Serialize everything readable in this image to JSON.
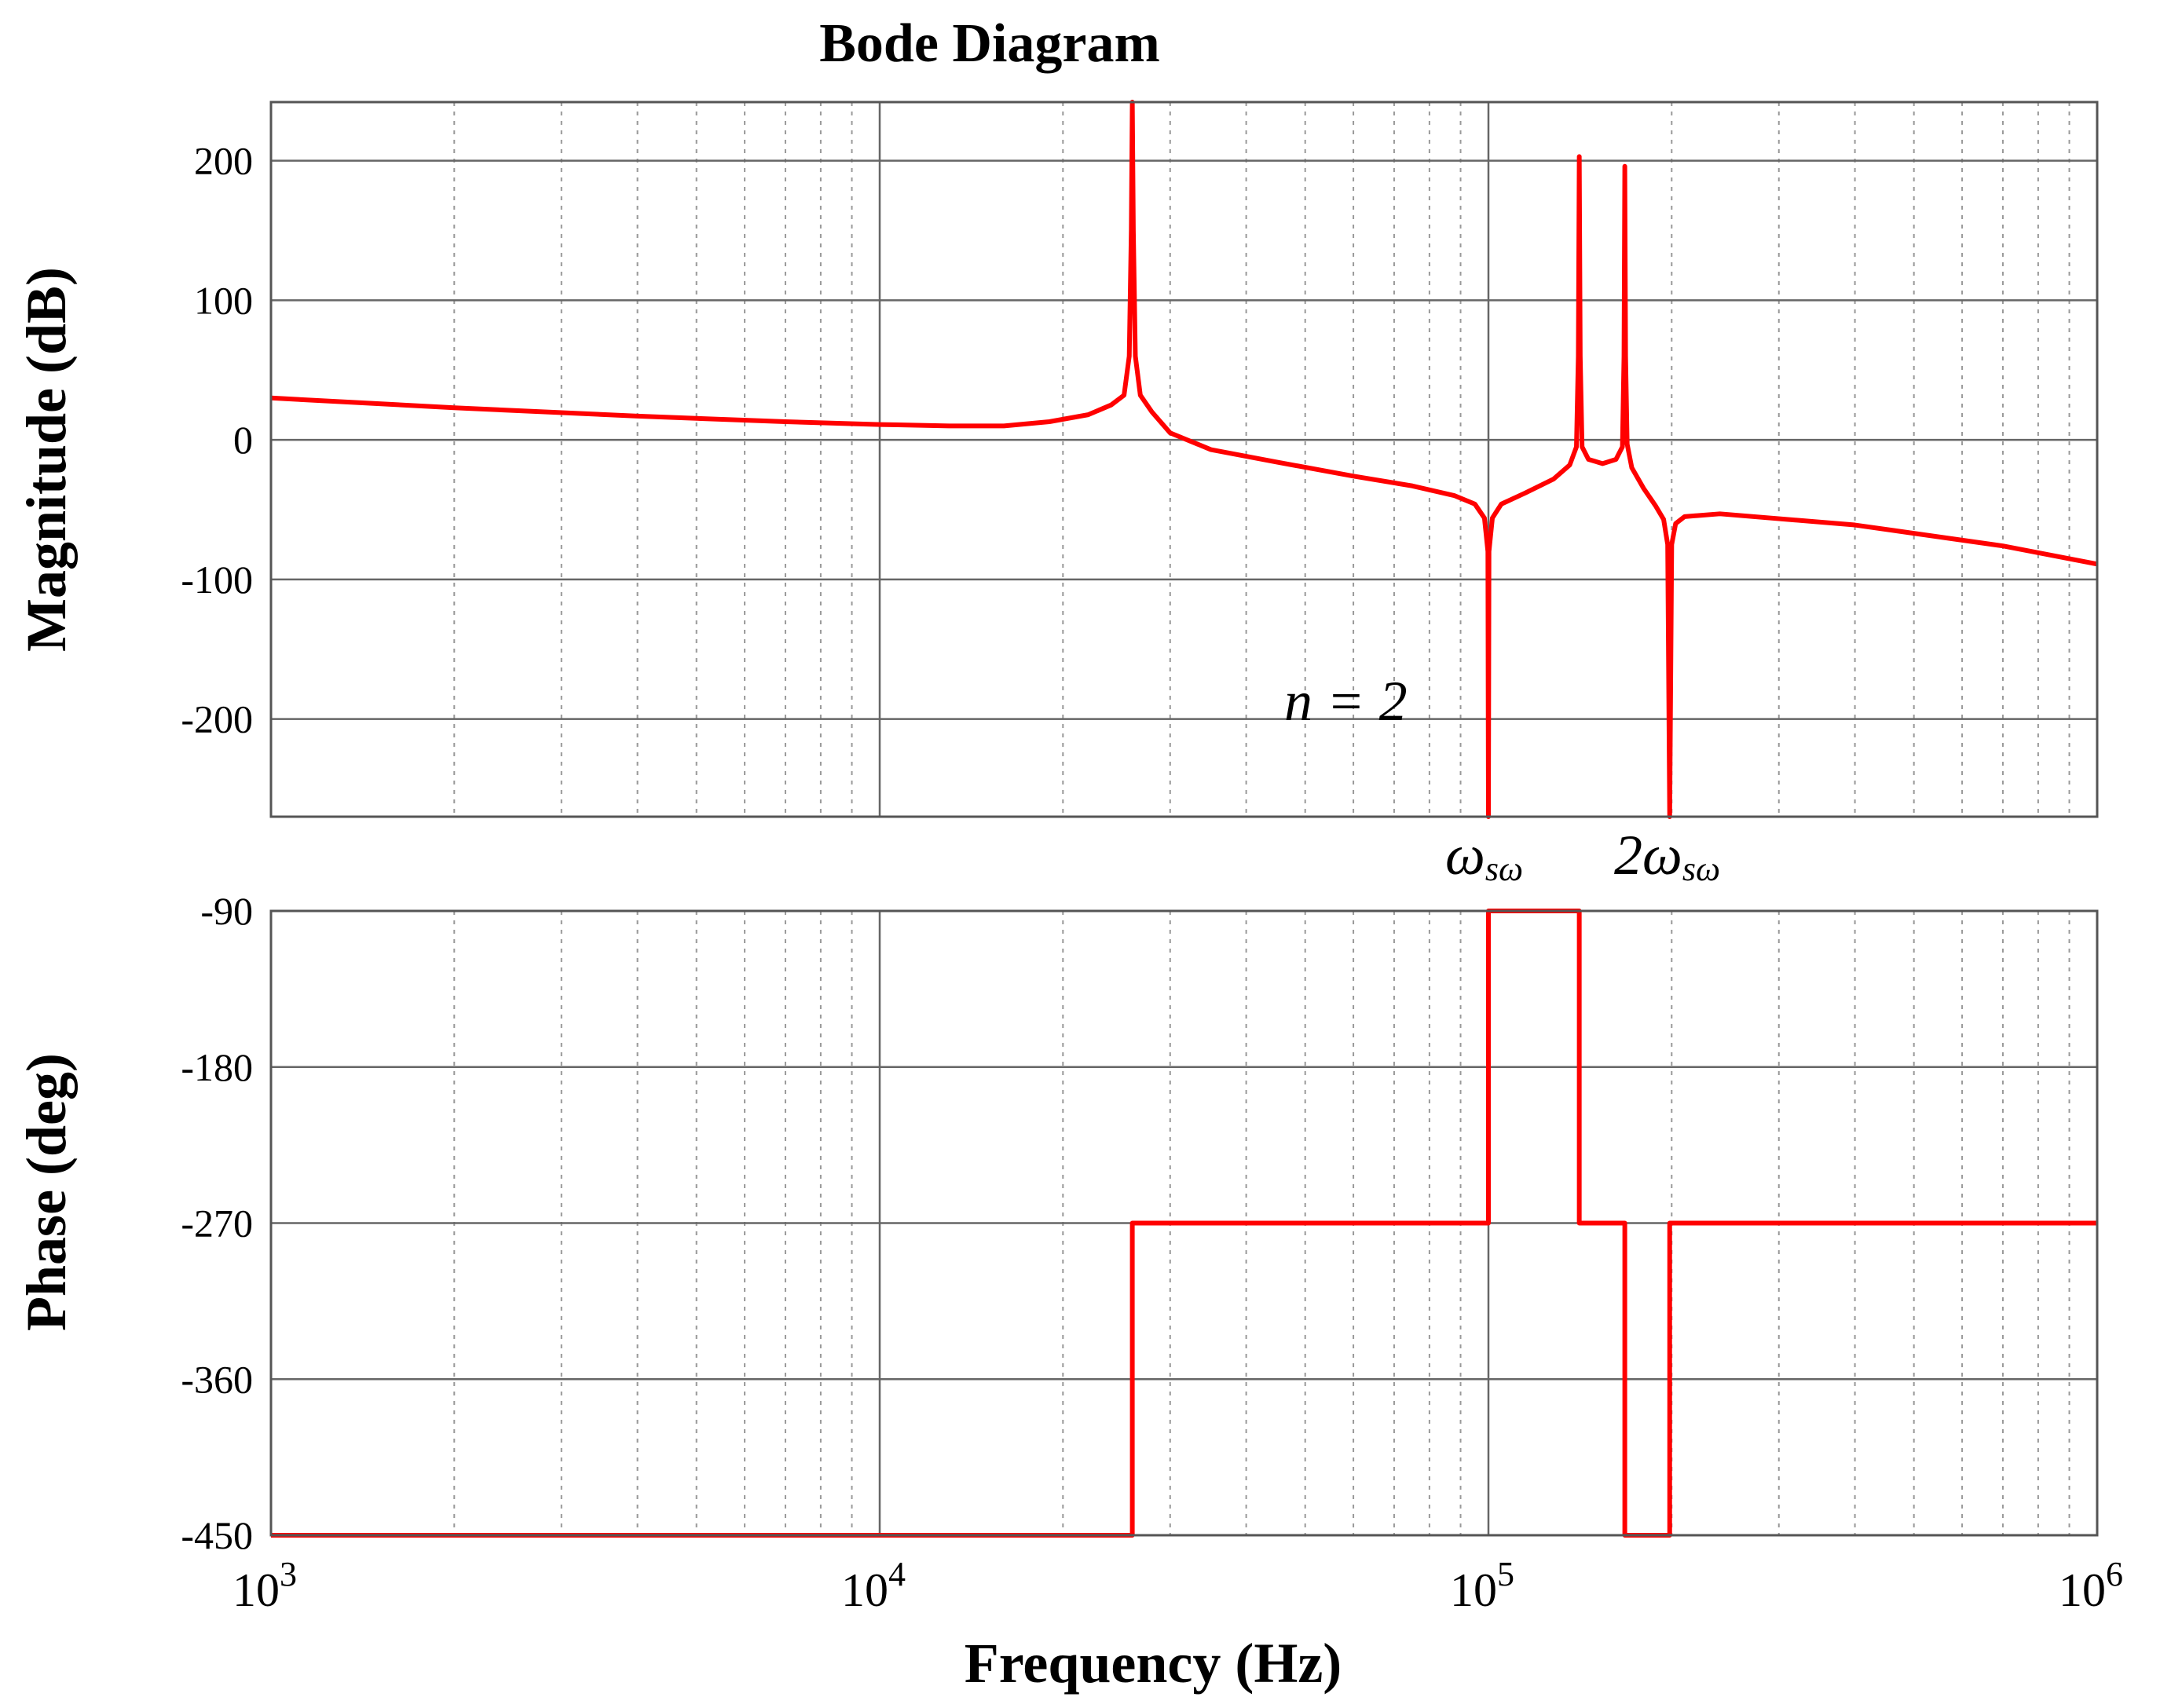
{
  "chart_data": {
    "type": "line",
    "title": "Bode Diagram",
    "xlabel": "Frequency  (Hz)",
    "xscale": "log",
    "xlim": [
      1000,
      1000000
    ],
    "x_ticks": [
      {
        "value": 1000,
        "base": "10",
        "exp": "3"
      },
      {
        "value": 10000,
        "base": "10",
        "exp": "4"
      },
      {
        "value": 100000,
        "base": "10",
        "exp": "5"
      },
      {
        "value": 1000000,
        "base": "10",
        "exp": "6"
      }
    ],
    "grid": true,
    "color": "#ff0000",
    "panels": [
      {
        "name": "magnitude",
        "ylabel": "Magnitude (dB)",
        "ylim": [
          -270,
          242
        ],
        "yticks": [
          200,
          100,
          0,
          -100,
          -200
        ],
        "ytick_labels": [
          "200",
          "100",
          "0",
          "-100",
          "-200"
        ],
        "series": [
          {
            "points": [
              [
                1000,
                30
              ],
              [
                2000,
                23
              ],
              [
                4000,
                17
              ],
              [
                7000,
                13
              ],
              [
                10000,
                11
              ],
              [
                13000,
                10
              ],
              [
                16000,
                10
              ],
              [
                19000,
                13
              ],
              [
                22000,
                18
              ],
              [
                24000,
                25
              ],
              [
                25200,
                32
              ],
              [
                25700,
                60
              ],
              [
                25900,
                150
              ],
              [
                26000,
                242
              ],
              [
                26100,
                150
              ],
              [
                26300,
                60
              ],
              [
                26800,
                32
              ],
              [
                28000,
                20
              ],
              [
                30000,
                5
              ],
              [
                35000,
                -7
              ],
              [
                45000,
                -16
              ],
              [
                60000,
                -26
              ],
              [
                75000,
                -33
              ],
              [
                88000,
                -40
              ],
              [
                95000,
                -46
              ],
              [
                98500,
                -56
              ],
              [
                99800,
                -80
              ],
              [
                100000,
                -270
              ],
              [
                100200,
                -80
              ],
              [
                101500,
                -56
              ],
              [
                105000,
                -46
              ],
              [
                115000,
                -38
              ],
              [
                128000,
                -28
              ],
              [
                136000,
                -18
              ],
              [
                139500,
                -5
              ],
              [
                140500,
                60
              ],
              [
                141000,
                203
              ],
              [
                141500,
                60
              ],
              [
                142500,
                -5
              ],
              [
                146000,
                -14
              ],
              [
                154000,
                -17
              ],
              [
                162000,
                -14
              ],
              [
                166000,
                -5
              ],
              [
                167000,
                60
              ],
              [
                167500,
                196
              ],
              [
                168000,
                60
              ],
              [
                169000,
                -3
              ],
              [
                172000,
                -20
              ],
              [
                180000,
                -35
              ],
              [
                188000,
                -47
              ],
              [
                194000,
                -57
              ],
              [
                197000,
                -75
              ],
              [
                198500,
                -270
              ],
              [
                200000,
                -75
              ],
              [
                203000,
                -60
              ],
              [
                210000,
                -55
              ],
              [
                240000,
                -53
              ],
              [
                400000,
                -61
              ],
              [
                700000,
                -76
              ],
              [
                1000000,
                -89
              ]
            ]
          }
        ],
        "annotations": [
          {
            "text": "n = 2"
          }
        ]
      },
      {
        "name": "phase",
        "ylabel": "Phase (deg)",
        "ylim": [
          -450,
          -90
        ],
        "yticks": [
          -90,
          -180,
          -270,
          -360,
          -450
        ],
        "ytick_labels": [
          "-90",
          "-180",
          "-270",
          "-360",
          "-450"
        ],
        "series": [
          {
            "points": [
              [
                1000,
                -450
              ],
              [
                26000,
                -450
              ],
              [
                26000,
                -270
              ],
              [
                100000,
                -270
              ],
              [
                100000,
                -90
              ],
              [
                141000,
                -90
              ],
              [
                141000,
                -270
              ],
              [
                167500,
                -270
              ],
              [
                167500,
                -450
              ],
              [
                198500,
                -450
              ],
              [
                198500,
                -270
              ],
              [
                1000000,
                -270
              ]
            ]
          }
        ]
      }
    ],
    "x_annotations": [
      {
        "main": "ω",
        "sub": "sω",
        "x": 100000
      },
      {
        "main": "2ω",
        "sub": "sω",
        "x": 200000
      }
    ]
  }
}
